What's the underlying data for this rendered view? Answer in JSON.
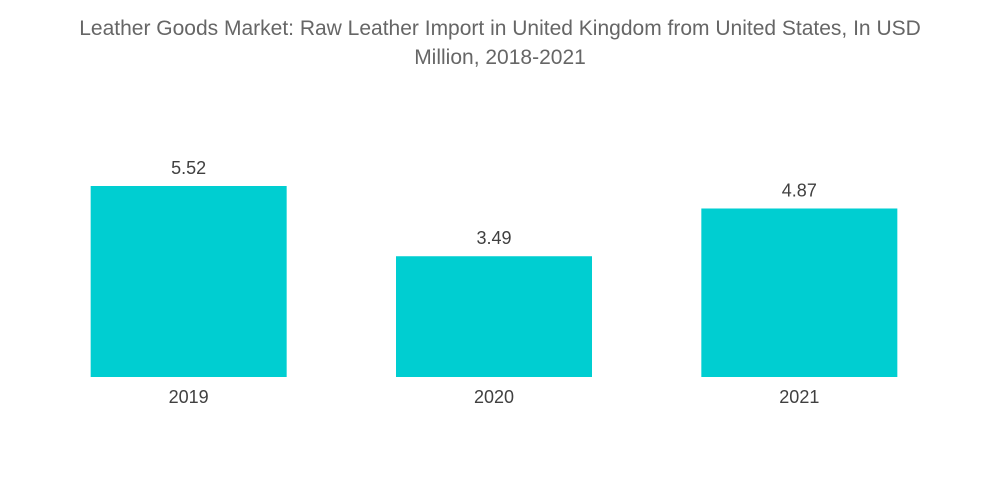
{
  "chart_data": {
    "type": "bar",
    "title_line1": "Leather Goods Market: Raw Leather Import in United Kingdom from United States, In USD",
    "title_line2": "Million, 2018-2021",
    "categories": [
      "2019",
      "2020",
      "2021"
    ],
    "values": [
      5.52,
      3.49,
      4.87
    ],
    "data_labels": [
      "5.52",
      "3.49",
      "4.87"
    ],
    "xlabel": "",
    "ylabel": "",
    "ylim": [
      0,
      5.52
    ],
    "grid": false,
    "legend": "none",
    "bar_color": "#00CED1"
  }
}
